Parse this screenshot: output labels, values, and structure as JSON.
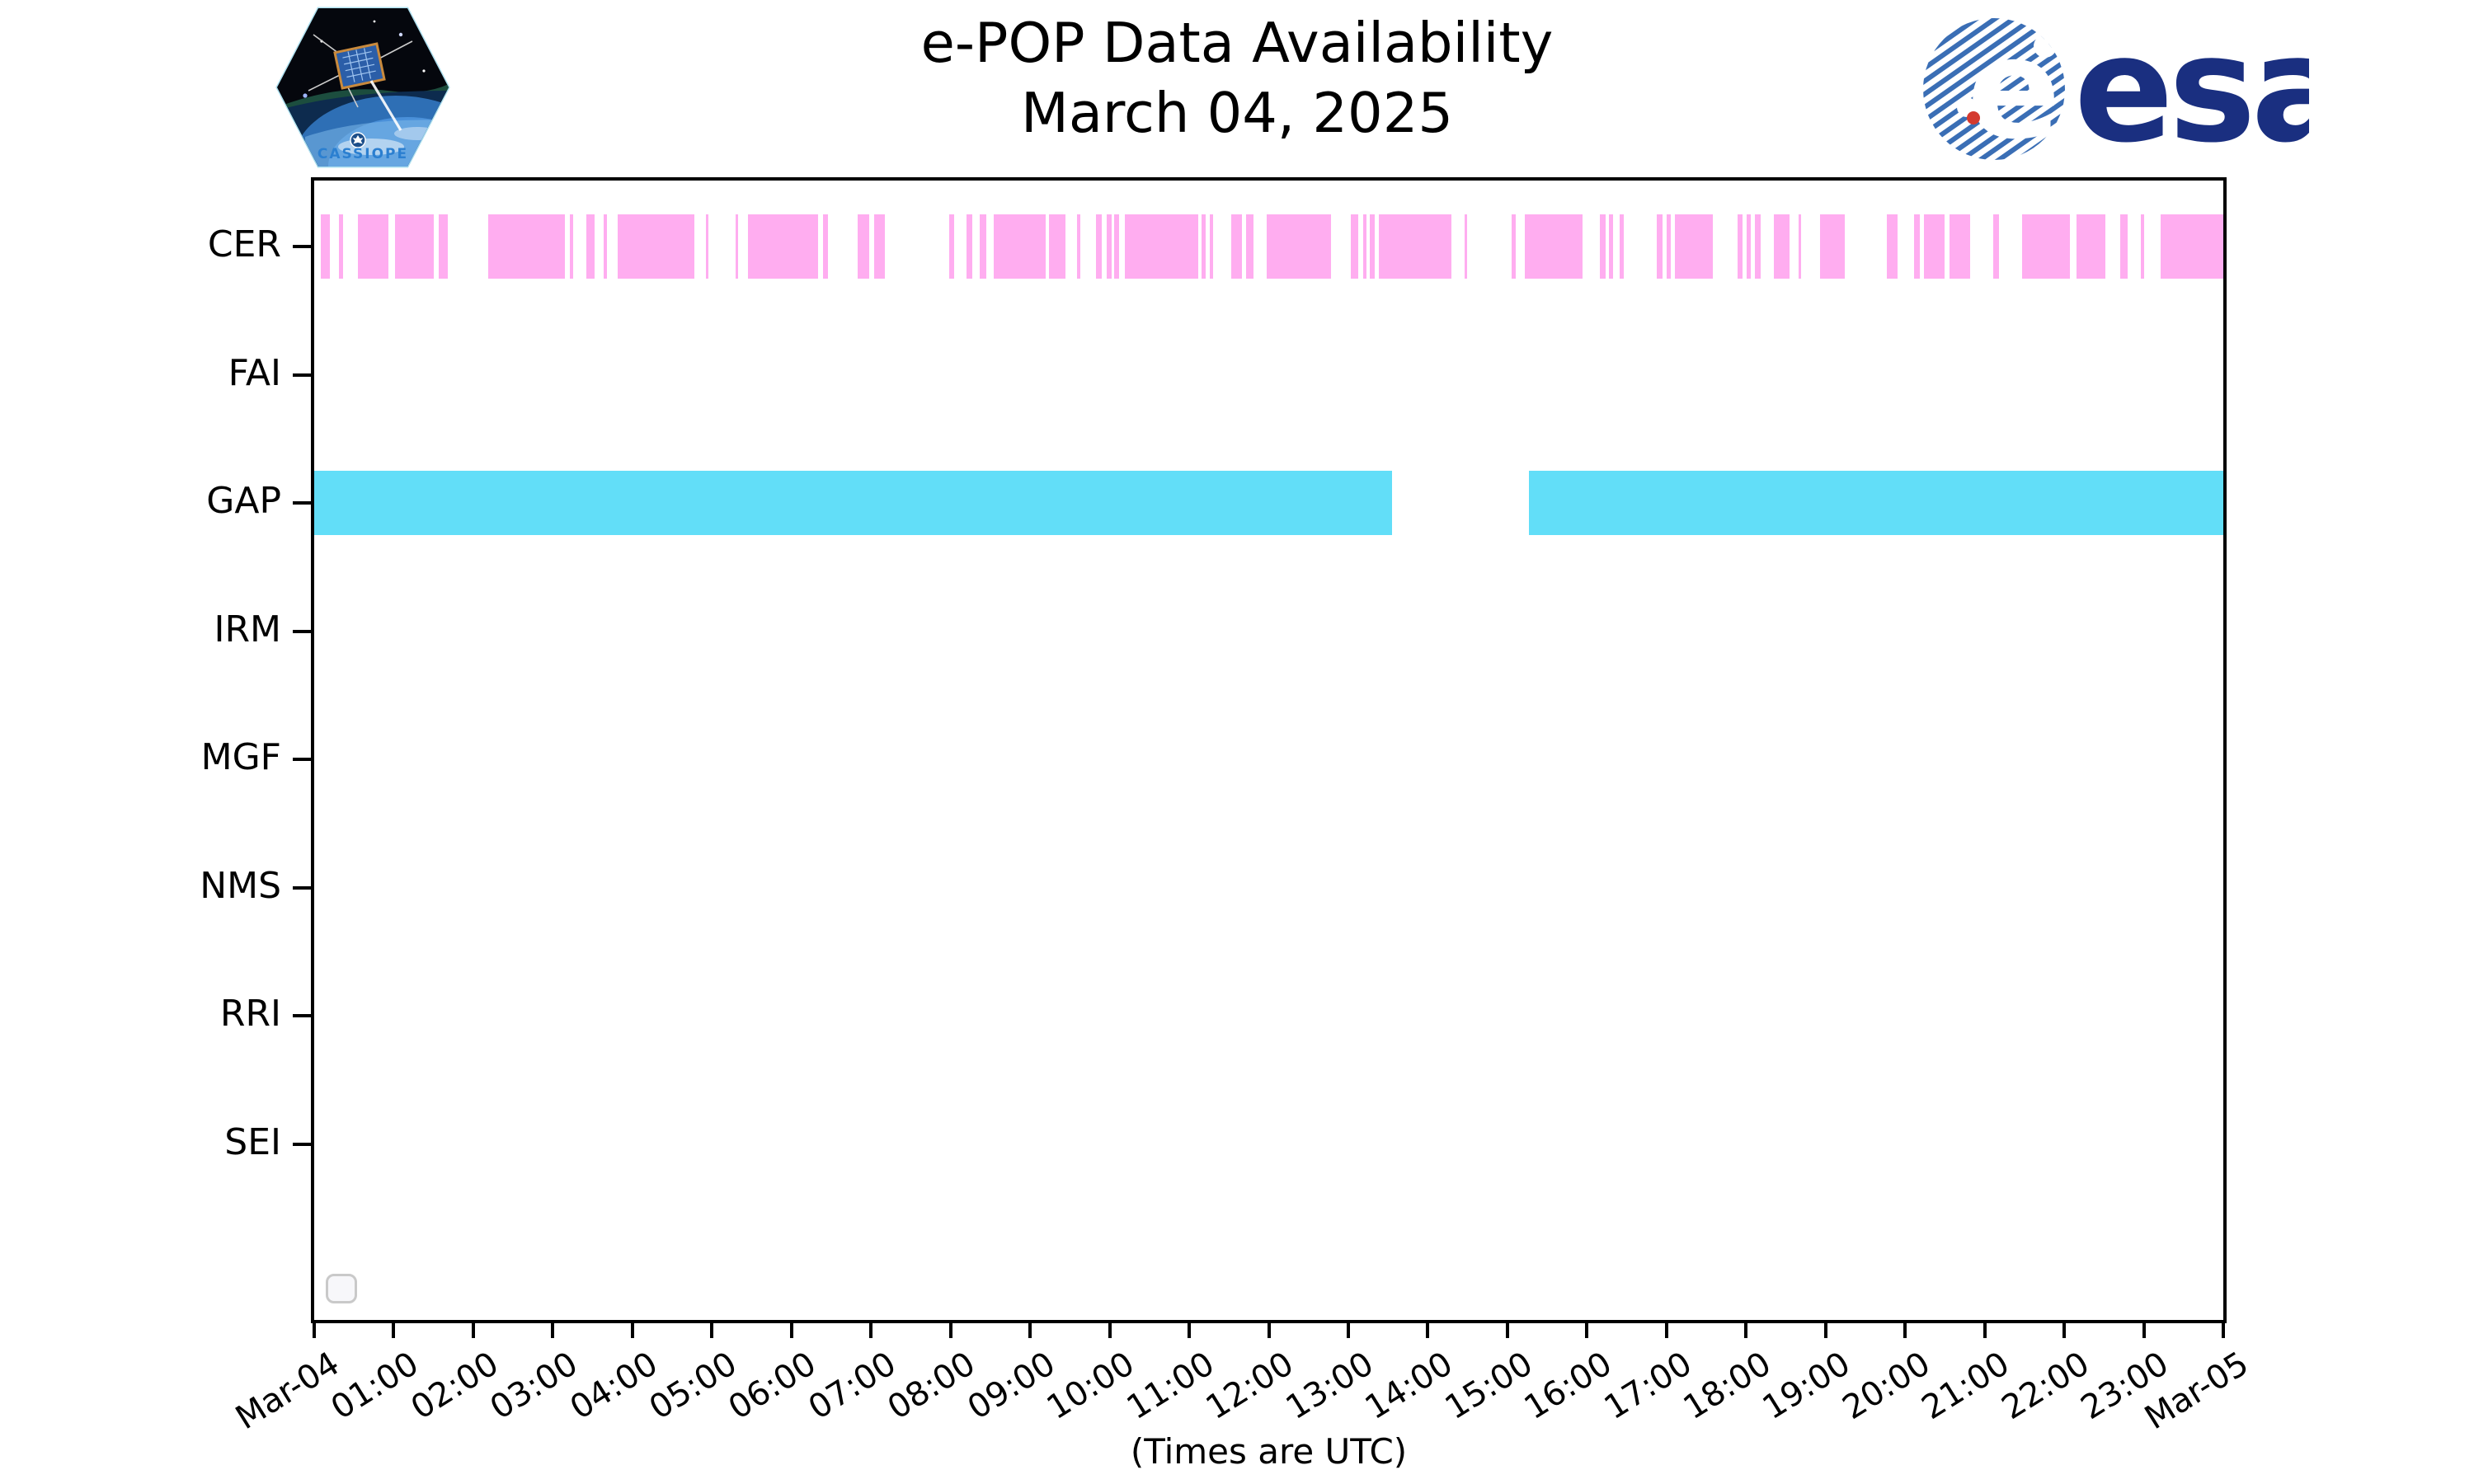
{
  "header": {
    "title": "e-POP Data Availability",
    "subtitle": "March 04, 2025",
    "cassiope_badge_label": "CASSIOPE",
    "esa_wordmark": "esa"
  },
  "footer": {
    "caption": "(Times are UTC)"
  },
  "chart_data": {
    "type": "bar",
    "subtype": "horizontal-availability-timeline",
    "title": "e-POP Data Availability",
    "subtitle": "March 04, 2025",
    "xlabel": "(Times are UTC)",
    "x_unit": "hours UTC on 2025-03-04",
    "xlim_hours": [
      0,
      24
    ],
    "x_tick_labels": [
      "Mar-04",
      "01:00",
      "02:00",
      "03:00",
      "04:00",
      "05:00",
      "06:00",
      "07:00",
      "08:00",
      "09:00",
      "10:00",
      "11:00",
      "12:00",
      "13:00",
      "14:00",
      "15:00",
      "16:00",
      "17:00",
      "18:00",
      "19:00",
      "20:00",
      "21:00",
      "22:00",
      "23:00",
      "Mar-05"
    ],
    "grid": false,
    "legend": {
      "visible": true,
      "entries": [],
      "position": "lower-left"
    },
    "categories": [
      "CER",
      "FAI",
      "GAP",
      "IRM",
      "MGF",
      "NMS",
      "RRI",
      "SEI"
    ],
    "colors": {
      "CER": "#FFADF0",
      "GAP": "#62DEF8",
      "axis": "#000000",
      "background": "#FFFFFF"
    },
    "series": [
      {
        "name": "CER",
        "color": "#FFADF0",
        "segments_hours": [
          [
            0.08,
            0.2
          ],
          [
            0.31,
            0.36
          ],
          [
            0.55,
            0.93
          ],
          [
            1.02,
            1.5
          ],
          [
            1.57,
            1.68
          ],
          [
            2.19,
            3.15
          ],
          [
            3.21,
            3.26
          ],
          [
            3.42,
            3.53
          ],
          [
            3.64,
            3.68
          ],
          [
            3.81,
            4.78
          ],
          [
            4.92,
            4.95
          ],
          [
            5.3,
            5.33
          ],
          [
            5.45,
            6.33
          ],
          [
            6.4,
            6.46
          ],
          [
            6.83,
            6.98
          ],
          [
            7.04,
            7.17
          ],
          [
            7.98,
            8.05
          ],
          [
            8.2,
            8.27
          ],
          [
            8.37,
            8.45
          ],
          [
            8.54,
            9.2
          ],
          [
            9.24,
            9.44
          ],
          [
            9.59,
            9.63
          ],
          [
            9.83,
            9.9
          ],
          [
            9.96,
            10.02
          ],
          [
            10.06,
            10.12
          ],
          [
            10.19,
            11.11
          ],
          [
            11.16,
            11.21
          ],
          [
            11.26,
            11.3
          ],
          [
            11.53,
            11.66
          ],
          [
            11.72,
            11.81
          ],
          [
            11.97,
            12.78
          ],
          [
            13.03,
            13.12
          ],
          [
            13.19,
            13.23
          ],
          [
            13.27,
            13.33
          ],
          [
            13.38,
            14.3
          ],
          [
            14.46,
            14.49
          ],
          [
            15.05,
            15.1
          ],
          [
            15.22,
            15.94
          ],
          [
            16.16,
            16.24
          ],
          [
            16.28,
            16.33
          ],
          [
            16.41,
            16.46
          ],
          [
            16.88,
            16.95
          ],
          [
            17.0,
            17.05
          ],
          [
            17.11,
            17.58
          ],
          [
            17.89,
            17.96
          ],
          [
            18.01,
            18.06
          ],
          [
            18.11,
            18.18
          ],
          [
            18.35,
            18.55
          ],
          [
            18.66,
            18.69
          ],
          [
            18.93,
            19.24
          ],
          [
            19.77,
            19.91
          ],
          [
            20.11,
            20.18
          ],
          [
            20.24,
            20.5
          ],
          [
            20.56,
            20.82
          ],
          [
            21.11,
            21.18
          ],
          [
            21.47,
            22.07
          ],
          [
            22.15,
            22.52
          ],
          [
            22.7,
            22.8
          ],
          [
            22.96,
            23.0
          ],
          [
            23.21,
            24.0
          ]
        ]
      },
      {
        "name": "FAI",
        "color": "#FFADF0",
        "segments_hours": []
      },
      {
        "name": "GAP",
        "color": "#62DEF8",
        "segments_hours": [
          [
            0.0,
            13.55
          ],
          [
            15.27,
            24.0
          ]
        ]
      },
      {
        "name": "IRM",
        "color": "#FFADF0",
        "segments_hours": []
      },
      {
        "name": "MGF",
        "color": "#FFADF0",
        "segments_hours": []
      },
      {
        "name": "NMS",
        "color": "#FFADF0",
        "segments_hours": []
      },
      {
        "name": "RRI",
        "color": "#FFADF0",
        "segments_hours": []
      },
      {
        "name": "SEI",
        "color": "#FFADF0",
        "segments_hours": []
      }
    ]
  }
}
